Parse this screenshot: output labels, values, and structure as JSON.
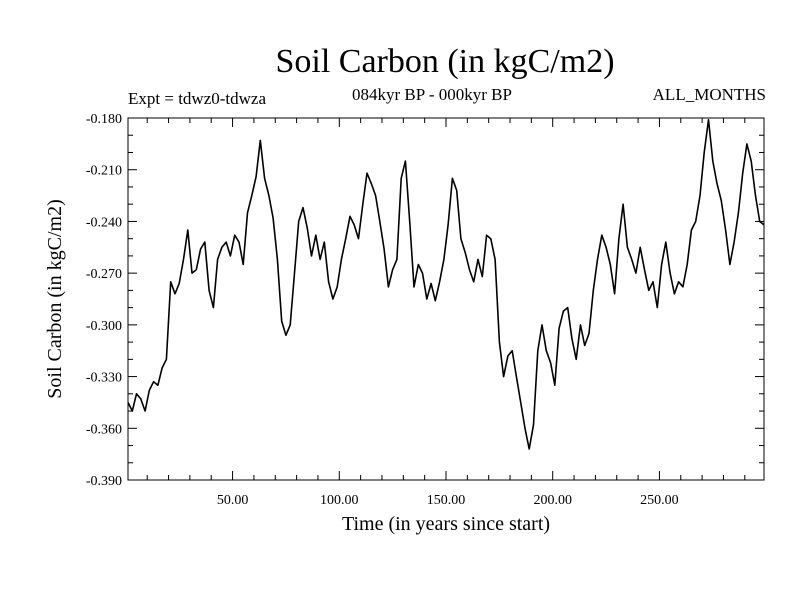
{
  "chart_data": {
    "type": "line",
    "title": "Soil Carbon (in kgC/m2)",
    "subtitle_left": "Expt = tdwz0-tdwza",
    "subtitle_center": "084kyr BP - 000kyr BP",
    "subtitle_right": "ALL_MONTHS",
    "xlabel": "Time (in years since start)",
    "ylabel": "Soil Carbon (in kgC/m2)",
    "xlim": [
      1,
      299
    ],
    "ylim": [
      -0.39,
      -0.18
    ],
    "x_ticks": [
      50,
      100,
      150,
      200,
      250
    ],
    "x_tick_labels": [
      "50.00",
      "100.00",
      "150.00",
      "200.00",
      "250.00"
    ],
    "y_ticks": [
      -0.18,
      -0.21,
      -0.24,
      -0.27,
      -0.3,
      -0.33,
      -0.36,
      -0.39
    ],
    "y_tick_labels": [
      "-0.180",
      "-0.210",
      "-0.240",
      "-0.270",
      "-0.300",
      "-0.330",
      "-0.360",
      "-0.390"
    ],
    "grid": false,
    "series": [
      {
        "color": "#000000",
        "x": [
          1,
          3,
          5,
          7,
          9,
          11,
          13,
          15,
          17,
          19,
          21,
          23,
          25,
          27,
          29,
          31,
          33,
          35,
          37,
          39,
          41,
          43,
          45,
          47,
          49,
          51,
          53,
          55,
          57,
          59,
          61,
          63,
          65,
          67,
          69,
          71,
          73,
          75,
          77,
          79,
          81,
          83,
          85,
          87,
          89,
          91,
          93,
          95,
          97,
          99,
          101,
          103,
          105,
          107,
          109,
          111,
          113,
          115,
          117,
          119,
          121,
          123,
          125,
          127,
          129,
          131,
          133,
          135,
          137,
          139,
          141,
          143,
          145,
          147,
          149,
          151,
          153,
          155,
          157,
          159,
          161,
          163,
          165,
          167,
          169,
          171,
          173,
          175,
          177,
          179,
          181,
          183,
          185,
          187,
          189,
          191,
          193,
          195,
          197,
          199,
          201,
          203,
          205,
          207,
          209,
          211,
          213,
          215,
          217,
          219,
          221,
          223,
          225,
          227,
          229,
          231,
          233,
          235,
          237,
          239,
          241,
          243,
          245,
          247,
          249,
          251,
          253,
          255,
          257,
          259,
          261,
          263,
          265,
          267,
          269,
          271,
          273,
          275,
          277,
          279,
          281,
          283,
          285,
          287,
          289,
          291,
          293,
          295,
          297,
          299
        ],
        "values": [
          -0.345,
          -0.35,
          -0.34,
          -0.343,
          -0.35,
          -0.338,
          -0.333,
          -0.335,
          -0.325,
          -0.32,
          -0.275,
          -0.282,
          -0.276,
          -0.262,
          -0.245,
          -0.27,
          -0.268,
          -0.256,
          -0.252,
          -0.28,
          -0.29,
          -0.262,
          -0.255,
          -0.252,
          -0.26,
          -0.248,
          -0.252,
          -0.265,
          -0.235,
          -0.225,
          -0.214,
          -0.193,
          -0.215,
          -0.225,
          -0.238,
          -0.262,
          -0.298,
          -0.306,
          -0.3,
          -0.27,
          -0.24,
          -0.232,
          -0.244,
          -0.26,
          -0.248,
          -0.262,
          -0.252,
          -0.275,
          -0.285,
          -0.278,
          -0.262,
          -0.25,
          -0.237,
          -0.242,
          -0.25,
          -0.23,
          -0.212,
          -0.218,
          -0.225,
          -0.24,
          -0.256,
          -0.278,
          -0.268,
          -0.262,
          -0.215,
          -0.205,
          -0.24,
          -0.278,
          -0.265,
          -0.27,
          -0.285,
          -0.276,
          -0.286,
          -0.275,
          -0.262,
          -0.242,
          -0.215,
          -0.222,
          -0.25,
          -0.258,
          -0.268,
          -0.275,
          -0.262,
          -0.272,
          -0.248,
          -0.25,
          -0.262,
          -0.31,
          -0.33,
          -0.318,
          -0.315,
          -0.33,
          -0.345,
          -0.36,
          -0.372,
          -0.358,
          -0.315,
          -0.3,
          -0.315,
          -0.322,
          -0.335,
          -0.302,
          -0.292,
          -0.29,
          -0.308,
          -0.32,
          -0.3,
          -0.312,
          -0.305,
          -0.28,
          -0.262,
          -0.248,
          -0.255,
          -0.265,
          -0.282,
          -0.25,
          -0.23,
          -0.255,
          -0.262,
          -0.27,
          -0.255,
          -0.268,
          -0.28,
          -0.275,
          -0.29,
          -0.265,
          -0.252,
          -0.27,
          -0.282,
          -0.275,
          -0.278,
          -0.265,
          -0.245,
          -0.24,
          -0.225,
          -0.2,
          -0.181,
          -0.205,
          -0.218,
          -0.228,
          -0.245,
          -0.265,
          -0.252,
          -0.235,
          -0.212,
          -0.195,
          -0.205,
          -0.225,
          -0.24,
          -0.242
        ]
      }
    ]
  }
}
